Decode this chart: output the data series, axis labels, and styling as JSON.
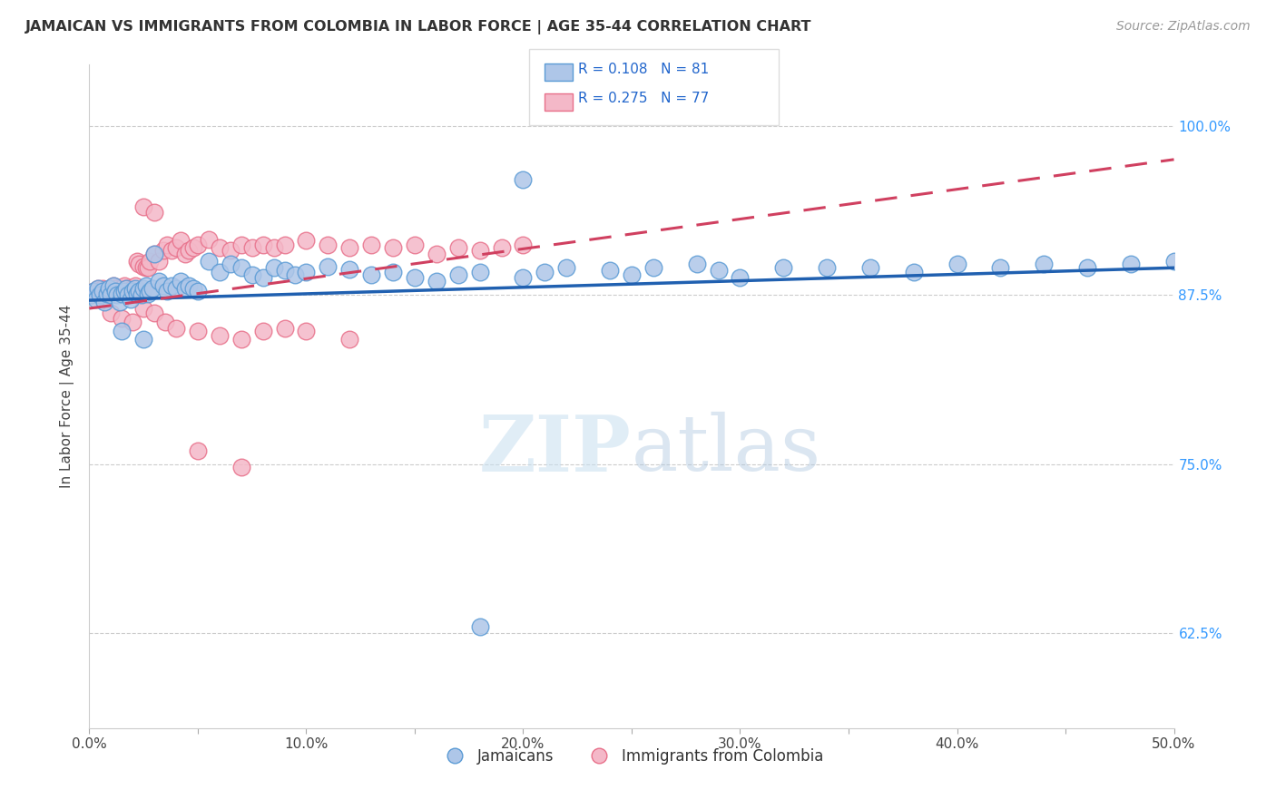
{
  "title": "JAMAICAN VS IMMIGRANTS FROM COLOMBIA IN LABOR FORCE | AGE 35-44 CORRELATION CHART",
  "source": "Source: ZipAtlas.com",
  "ylabel": "In Labor Force | Age 35-44",
  "xlim": [
    0.0,
    0.5
  ],
  "ylim": [
    0.555,
    1.045
  ],
  "xtick_labels": [
    "0.0%",
    "",
    "10.0%",
    "",
    "20.0%",
    "",
    "30.0%",
    "",
    "40.0%",
    "",
    "50.0%"
  ],
  "xtick_values": [
    0.0,
    0.05,
    0.1,
    0.15,
    0.2,
    0.25,
    0.3,
    0.35,
    0.4,
    0.45,
    0.5
  ],
  "ytick_labels": [
    "62.5%",
    "75.0%",
    "87.5%",
    "100.0%"
  ],
  "ytick_values": [
    0.625,
    0.75,
    0.875,
    1.0
  ],
  "blue_color": "#aec6e8",
  "pink_color": "#f4b8c8",
  "blue_edge": "#5b9bd5",
  "pink_edge": "#e8708a",
  "trend_blue": "#2060b0",
  "trend_pink": "#d04060",
  "legend_R_blue": "R = 0.108",
  "legend_N_blue": "N = 81",
  "legend_R_pink": "R = 0.275",
  "legend_N_pink": "N = 77",
  "label_blue": "Jamaicans",
  "label_pink": "Immigrants from Colombia",
  "watermark": "ZIPatlas",
  "blue_x": [
    0.001,
    0.002,
    0.003,
    0.004,
    0.005,
    0.006,
    0.007,
    0.008,
    0.009,
    0.01,
    0.011,
    0.012,
    0.013,
    0.014,
    0.015,
    0.016,
    0.017,
    0.018,
    0.019,
    0.02,
    0.021,
    0.022,
    0.023,
    0.024,
    0.025,
    0.026,
    0.027,
    0.028,
    0.029,
    0.03,
    0.032,
    0.034,
    0.036,
    0.038,
    0.04,
    0.042,
    0.044,
    0.046,
    0.048,
    0.05,
    0.055,
    0.06,
    0.065,
    0.07,
    0.075,
    0.08,
    0.085,
    0.09,
    0.095,
    0.1,
    0.11,
    0.12,
    0.13,
    0.14,
    0.15,
    0.16,
    0.17,
    0.18,
    0.2,
    0.21,
    0.22,
    0.24,
    0.25,
    0.26,
    0.28,
    0.29,
    0.3,
    0.32,
    0.34,
    0.36,
    0.38,
    0.4,
    0.42,
    0.44,
    0.46,
    0.48,
    0.5,
    0.015,
    0.025,
    0.2,
    0.18
  ],
  "blue_y": [
    0.875,
    0.878,
    0.872,
    0.88,
    0.875,
    0.878,
    0.87,
    0.876,
    0.88,
    0.875,
    0.882,
    0.878,
    0.875,
    0.87,
    0.876,
    0.878,
    0.88,
    0.875,
    0.872,
    0.878,
    0.88,
    0.876,
    0.878,
    0.875,
    0.88,
    0.882,
    0.876,
    0.878,
    0.88,
    0.905,
    0.885,
    0.882,
    0.878,
    0.882,
    0.88,
    0.885,
    0.88,
    0.882,
    0.88,
    0.878,
    0.9,
    0.892,
    0.898,
    0.895,
    0.89,
    0.888,
    0.895,
    0.893,
    0.89,
    0.892,
    0.896,
    0.894,
    0.89,
    0.892,
    0.888,
    0.885,
    0.89,
    0.892,
    0.888,
    0.892,
    0.895,
    0.893,
    0.89,
    0.895,
    0.898,
    0.893,
    0.888,
    0.895,
    0.895,
    0.895,
    0.892,
    0.898,
    0.895,
    0.898,
    0.895,
    0.898,
    0.9,
    0.848,
    0.842,
    0.96,
    0.63
  ],
  "pink_x": [
    0.001,
    0.002,
    0.003,
    0.004,
    0.005,
    0.006,
    0.007,
    0.008,
    0.009,
    0.01,
    0.011,
    0.012,
    0.013,
    0.014,
    0.015,
    0.016,
    0.017,
    0.018,
    0.019,
    0.02,
    0.021,
    0.022,
    0.023,
    0.024,
    0.025,
    0.026,
    0.027,
    0.028,
    0.03,
    0.032,
    0.034,
    0.036,
    0.038,
    0.04,
    0.042,
    0.044,
    0.046,
    0.048,
    0.05,
    0.055,
    0.06,
    0.065,
    0.07,
    0.075,
    0.08,
    0.085,
    0.09,
    0.1,
    0.11,
    0.12,
    0.13,
    0.14,
    0.15,
    0.16,
    0.17,
    0.18,
    0.19,
    0.2,
    0.01,
    0.015,
    0.02,
    0.025,
    0.03,
    0.035,
    0.04,
    0.05,
    0.06,
    0.07,
    0.08,
    0.09,
    0.1,
    0.12,
    0.05,
    0.025,
    0.03,
    0.07
  ],
  "pink_y": [
    0.875,
    0.878,
    0.876,
    0.88,
    0.878,
    0.88,
    0.876,
    0.878,
    0.88,
    0.878,
    0.882,
    0.88,
    0.878,
    0.876,
    0.88,
    0.882,
    0.88,
    0.878,
    0.876,
    0.88,
    0.882,
    0.9,
    0.898,
    0.878,
    0.896,
    0.895,
    0.895,
    0.9,
    0.905,
    0.9,
    0.908,
    0.912,
    0.908,
    0.91,
    0.915,
    0.905,
    0.908,
    0.91,
    0.912,
    0.916,
    0.91,
    0.908,
    0.912,
    0.91,
    0.912,
    0.91,
    0.912,
    0.915,
    0.912,
    0.91,
    0.912,
    0.91,
    0.912,
    0.905,
    0.91,
    0.908,
    0.91,
    0.912,
    0.862,
    0.858,
    0.855,
    0.865,
    0.862,
    0.855,
    0.85,
    0.848,
    0.845,
    0.842,
    0.848,
    0.85,
    0.848,
    0.842,
    0.76,
    0.94,
    0.936,
    0.748
  ]
}
